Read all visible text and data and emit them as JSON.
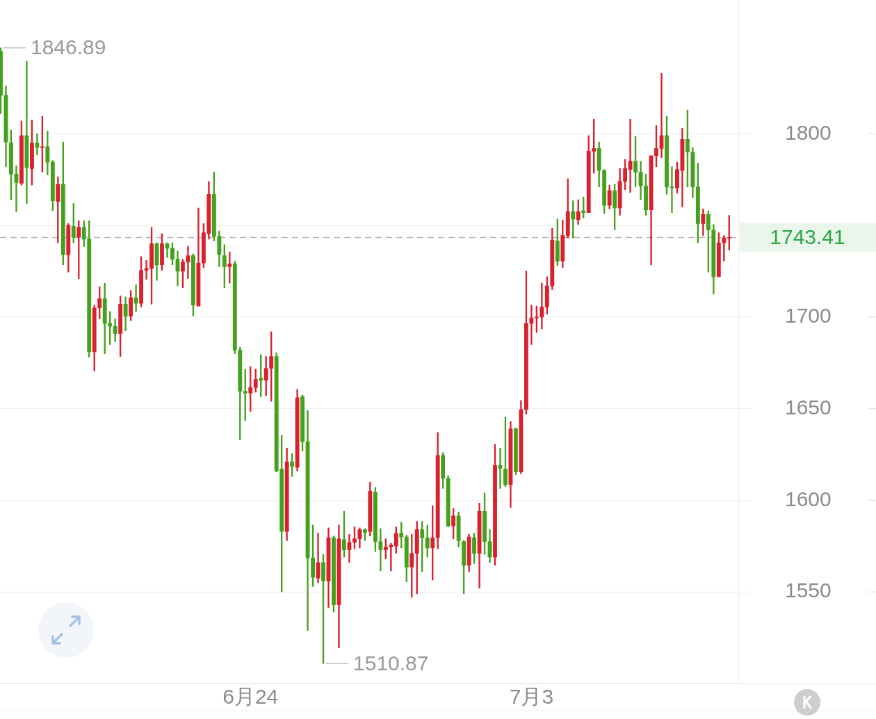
{
  "chart_data": {
    "type": "candlestick",
    "categories": [
      null,
      null,
      null,
      null,
      null,
      null,
      null,
      null,
      null,
      null,
      null,
      null,
      null,
      null,
      null,
      null,
      null,
      null,
      null,
      null,
      null,
      null,
      null,
      null,
      null,
      null,
      null,
      null,
      null,
      null,
      null,
      null,
      null,
      null,
      null,
      null,
      null,
      null,
      null,
      null,
      null,
      null,
      null,
      null,
      null,
      null,
      null,
      null,
      "6月24",
      null,
      null,
      null,
      null,
      null,
      null,
      null,
      null,
      null,
      null,
      null,
      null,
      null,
      null,
      null,
      null,
      null,
      null,
      null,
      null,
      null,
      null,
      null,
      null,
      null,
      null,
      null,
      null,
      null,
      null,
      null,
      null,
      null,
      null,
      null,
      null,
      null,
      null,
      null,
      null,
      null,
      null,
      null,
      null,
      null,
      null,
      null,
      null,
      null,
      null,
      null,
      null,
      null,
      "7月3",
      null,
      null,
      null,
      null,
      null,
      null,
      null,
      null,
      null,
      null,
      null,
      null,
      null,
      null,
      null,
      null,
      null,
      null,
      null,
      null,
      null,
      null,
      null,
      null,
      null,
      null,
      null,
      null,
      null,
      null,
      null,
      null,
      null,
      null,
      null,
      null,
      null,
      null
    ],
    "ohlc": [
      [
        1845,
        1846.89,
        1811,
        1821
      ],
      [
        1821,
        1826,
        1782,
        1795.5
      ],
      [
        1795,
        1802,
        1764,
        1778
      ],
      [
        1778,
        1782.5,
        1757.5,
        1773.5
      ],
      [
        1773,
        1807,
        1772,
        1799
      ],
      [
        1799,
        1839.5,
        1762,
        1781.5
      ],
      [
        1781,
        1807.5,
        1772,
        1795
      ],
      [
        1795,
        1800,
        1788.5,
        1792.5
      ],
      [
        1792.5,
        1809.5,
        1779,
        1793
      ],
      [
        1793,
        1801.5,
        1777.5,
        1784.5
      ],
      [
        1784.5,
        1785.5,
        1758,
        1763.5
      ],
      [
        1763,
        1776.5,
        1740.5,
        1772.5
      ],
      [
        1772.5,
        1795.5,
        1728.5,
        1734
      ],
      [
        1734,
        1751,
        1724.5,
        1750
      ],
      [
        1749.5,
        1762,
        1740.5,
        1743.5
      ],
      [
        1743.5,
        1752.5,
        1721,
        1749
      ],
      [
        1749,
        1752.5,
        1738.5,
        1742.5
      ],
      [
        1742.5,
        1752.5,
        1678,
        1681
      ],
      [
        1681,
        1706.5,
        1670.5,
        1705
      ],
      [
        1705,
        1716.5,
        1699,
        1710
      ],
      [
        1710,
        1718.5,
        1680,
        1696.5
      ],
      [
        1696.5,
        1703,
        1685,
        1695
      ],
      [
        1695,
        1699,
        1686.5,
        1691
      ],
      [
        1691,
        1711.5,
        1678.5,
        1707
      ],
      [
        1707,
        1711,
        1692.5,
        1700.5
      ],
      [
        1700.5,
        1714.5,
        1698,
        1710.5
      ],
      [
        1710.5,
        1717.5,
        1703,
        1707.5
      ],
      [
        1707.5,
        1733,
        1705.5,
        1725.5
      ],
      [
        1725.5,
        1731,
        1720.5,
        1726.5
      ],
      [
        1726.5,
        1749,
        1707,
        1740
      ],
      [
        1740,
        1740.5,
        1720,
        1728.5
      ],
      [
        1728.5,
        1745.5,
        1725.5,
        1740
      ],
      [
        1740,
        1740.5,
        1732.5,
        1737.5
      ],
      [
        1737.5,
        1740.5,
        1728.5,
        1731.5
      ],
      [
        1731.5,
        1736,
        1717,
        1725
      ],
      [
        1725,
        1731.5,
        1716,
        1730
      ],
      [
        1730,
        1738.5,
        1721,
        1733.5
      ],
      [
        1733.5,
        1734.5,
        1700.5,
        1706.5
      ],
      [
        1706,
        1759.5,
        1706,
        1729.5
      ],
      [
        1729.5,
        1751,
        1727,
        1746
      ],
      [
        1745.5,
        1774,
        1742.5,
        1767
      ],
      [
        1767,
        1779,
        1741.5,
        1744
      ],
      [
        1744,
        1747,
        1727.5,
        1734
      ],
      [
        1733.5,
        1739.5,
        1716,
        1727.5
      ],
      [
        1727.5,
        1735.5,
        1718.5,
        1729
      ],
      [
        1729,
        1730.5,
        1680,
        1682
      ],
      [
        1682,
        1683.5,
        1633,
        1659.5
      ],
      [
        1659.5,
        1671.5,
        1643.5,
        1658.5
      ],
      [
        1658.5,
        1673,
        1648.5,
        1661.5
      ],
      [
        1661.5,
        1671.5,
        1659,
        1666
      ],
      [
        1666.5,
        1679.5,
        1656.5,
        1665.5
      ],
      [
        1665.5,
        1678.5,
        1657,
        1672
      ],
      [
        1672,
        1692,
        1654,
        1678.5
      ],
      [
        1678.5,
        1680.5,
        1615.5,
        1616
      ],
      [
        1617,
        1635.5,
        1550,
        1583
      ],
      [
        1583,
        1628.5,
        1578,
        1621
      ],
      [
        1621,
        1625.5,
        1613,
        1618.5
      ],
      [
        1618,
        1660.5,
        1616,
        1656
      ],
      [
        1656.5,
        1657.5,
        1627,
        1632
      ],
      [
        1632,
        1649,
        1529,
        1568.5
      ],
      [
        1568.5,
        1586.5,
        1553,
        1558
      ],
      [
        1557.5,
        1582,
        1555,
        1566
      ],
      [
        1566,
        1570.5,
        1510.87,
        1556
      ],
      [
        1556,
        1585,
        1541.5,
        1579.5
      ],
      [
        1579.5,
        1580.5,
        1539,
        1543
      ],
      [
        1543,
        1586.5,
        1519.5,
        1579
      ],
      [
        1578.5,
        1594,
        1569,
        1573
      ],
      [
        1573,
        1581.5,
        1566,
        1577
      ],
      [
        1577,
        1585.5,
        1573.5,
        1579
      ],
      [
        1579,
        1585,
        1574,
        1584
      ],
      [
        1584,
        1584.5,
        1578,
        1582.5
      ],
      [
        1583,
        1610,
        1580.5,
        1605
      ],
      [
        1604.5,
        1607,
        1572,
        1577.5
      ],
      [
        1577.5,
        1584.5,
        1561.5,
        1573
      ],
      [
        1573,
        1579,
        1568,
        1574.5
      ],
      [
        1574.5,
        1576.5,
        1561.5,
        1575.5
      ],
      [
        1575,
        1585.5,
        1571,
        1582
      ],
      [
        1582,
        1588,
        1574,
        1580
      ],
      [
        1580,
        1581,
        1555.5,
        1563.5
      ],
      [
        1563.5,
        1581.5,
        1547,
        1571
      ],
      [
        1571,
        1588.5,
        1549,
        1584
      ],
      [
        1584,
        1588.5,
        1561,
        1579.5
      ],
      [
        1579.5,
        1586.5,
        1569,
        1574
      ],
      [
        1574,
        1597,
        1556.5,
        1579.5
      ],
      [
        1579.5,
        1637,
        1573.5,
        1624.5
      ],
      [
        1624.5,
        1626,
        1606.5,
        1612
      ],
      [
        1612,
        1613.5,
        1585.5,
        1586
      ],
      [
        1586,
        1595.5,
        1579,
        1591.5
      ],
      [
        1591.5,
        1593.5,
        1574.5,
        1578
      ],
      [
        1577.5,
        1578,
        1549,
        1564.5
      ],
      [
        1564.5,
        1581.5,
        1561,
        1580
      ],
      [
        1579.5,
        1582,
        1565.5,
        1571
      ],
      [
        1571,
        1598.5,
        1552,
        1594
      ],
      [
        1594,
        1604,
        1570.5,
        1577.5
      ],
      [
        1577.5,
        1584,
        1566,
        1569
      ],
      [
        1569,
        1630.5,
        1564.5,
        1619
      ],
      [
        1619,
        1628.5,
        1606.5,
        1617.5
      ],
      [
        1617,
        1645.5,
        1607.5,
        1608.5
      ],
      [
        1608.5,
        1643,
        1596,
        1639
      ],
      [
        1639,
        1639.5,
        1614,
        1615.5
      ],
      [
        1615.5,
        1654.5,
        1614.5,
        1649.5
      ],
      [
        1649.5,
        1725,
        1647,
        1696.5
      ],
      [
        1696.5,
        1706.5,
        1685,
        1699.5
      ],
      [
        1699.5,
        1706,
        1691.5,
        1700
      ],
      [
        1700,
        1718.5,
        1693.5,
        1705.5
      ],
      [
        1705.5,
        1722,
        1701.5,
        1717
      ],
      [
        1717,
        1748.5,
        1715,
        1742
      ],
      [
        1741.5,
        1753.5,
        1728,
        1730.5
      ],
      [
        1730.5,
        1753,
        1727,
        1744.5
      ],
      [
        1744.5,
        1775.5,
        1743,
        1757.5
      ],
      [
        1757.5,
        1763.5,
        1743,
        1753.5
      ],
      [
        1753,
        1764,
        1750.5,
        1757.5
      ],
      [
        1758,
        1765.5,
        1754,
        1757
      ],
      [
        1757,
        1799,
        1757,
        1790.5
      ],
      [
        1790.5,
        1808,
        1778.5,
        1792
      ],
      [
        1792,
        1795.5,
        1771,
        1780
      ],
      [
        1780,
        1780.5,
        1756.5,
        1761
      ],
      [
        1761,
        1772,
        1759,
        1769
      ],
      [
        1769,
        1772.5,
        1747.5,
        1759.5
      ],
      [
        1759.5,
        1781,
        1755.5,
        1774
      ],
      [
        1774,
        1786,
        1769.5,
        1781
      ],
      [
        1780.5,
        1808,
        1768,
        1785
      ],
      [
        1785,
        1798.5,
        1771,
        1779
      ],
      [
        1779,
        1785,
        1764,
        1771.5
      ],
      [
        1771.5,
        1778,
        1755.5,
        1758.5
      ],
      [
        1758.5,
        1788,
        1728.5,
        1788
      ],
      [
        1788,
        1804.5,
        1782,
        1792
      ],
      [
        1792,
        1833,
        1787,
        1799
      ],
      [
        1799,
        1809.5,
        1767,
        1771
      ],
      [
        1771,
        1782,
        1757,
        1770.5
      ],
      [
        1770.5,
        1784.5,
        1767.5,
        1780.5
      ],
      [
        1780,
        1803,
        1760,
        1797
      ],
      [
        1797,
        1813,
        1771,
        1790
      ],
      [
        1790,
        1792.5,
        1765,
        1771
      ],
      [
        1771,
        1784,
        1740.5,
        1751
      ],
      [
        1751,
        1759,
        1744.5,
        1756
      ],
      [
        1756,
        1758,
        1724.5,
        1747.5
      ],
      [
        1747.5,
        1750.5,
        1712.5,
        1722
      ],
      [
        1722,
        1746,
        1722,
        1740.5
      ],
      [
        1740.5,
        1744.5,
        1730.5,
        1743
      ],
      [
        1743,
        1755.5,
        1736.5,
        1743.41
      ]
    ],
    "colors": [
      "#43a11c",
      "#43a11c",
      "#43a11c",
      "#43a11c",
      "#d9202e",
      "#43a11c",
      "#d9202e",
      "#43a11c",
      "#d9202e",
      "#43a11c",
      "#43a11c",
      "#d9202e",
      "#43a11c",
      "#d9202e",
      "#43a11c",
      "#d9202e",
      "#43a11c",
      "#43a11c",
      "#d9202e",
      "#d9202e",
      "#43a11c",
      "#43a11c",
      "#43a11c",
      "#d9202e",
      "#43a11c",
      "#d9202e",
      "#43a11c",
      "#d9202e",
      "#d9202e",
      "#d9202e",
      "#43a11c",
      "#d9202e",
      "#43a11c",
      "#43a11c",
      "#43a11c",
      "#d9202e",
      "#d9202e",
      "#43a11c",
      "#d9202e",
      "#d9202e",
      "#d9202e",
      "#43a11c",
      "#43a11c",
      "#43a11c",
      "#d9202e",
      "#43a11c",
      "#43a11c",
      "#43a11c",
      "#d9202e",
      "#d9202e",
      "#43a11c",
      "#d9202e",
      "#d9202e",
      "#43a11c",
      "#43a11c",
      "#d9202e",
      "#43a11c",
      "#d9202e",
      "#43a11c",
      "#43a11c",
      "#43a11c",
      "#d9202e",
      "#43a11c",
      "#d9202e",
      "#43a11c",
      "#d9202e",
      "#43a11c",
      "#d9202e",
      "#d9202e",
      "#d9202e",
      "#43a11c",
      "#d9202e",
      "#43a11c",
      "#43a11c",
      "#d9202e",
      "#d9202e",
      "#d9202e",
      "#43a11c",
      "#43a11c",
      "#d9202e",
      "#d9202e",
      "#43a11c",
      "#43a11c",
      "#d9202e",
      "#d9202e",
      "#43a11c",
      "#43a11c",
      "#d9202e",
      "#43a11c",
      "#43a11c",
      "#d9202e",
      "#43a11c",
      "#d9202e",
      "#43a11c",
      "#43a11c",
      "#d9202e",
      "#43a11c",
      "#43a11c",
      "#d9202e",
      "#43a11c",
      "#d9202e",
      "#d9202e",
      "#d9202e",
      "#d9202e",
      "#d9202e",
      "#d9202e",
      "#d9202e",
      "#43a11c",
      "#d9202e",
      "#d9202e",
      "#43a11c",
      "#d9202e",
      "#43a11c",
      "#d9202e",
      "#d9202e",
      "#43a11c",
      "#43a11c",
      "#d9202e",
      "#43a11c",
      "#d9202e",
      "#d9202e",
      "#d9202e",
      "#43a11c",
      "#43a11c",
      "#43a11c",
      "#d9202e",
      "#d9202e",
      "#d9202e",
      "#43a11c",
      "#43a11c",
      "#d9202e",
      "#d9202e",
      "#43a11c",
      "#43a11c",
      "#43a11c",
      "#d9202e",
      "#43a11c",
      "#43a11c",
      "#d9202e",
      "#d9202e",
      "#d9202e"
    ],
    "ylim": [
      1500,
      1873
    ],
    "yticks": [
      1550,
      1600,
      1650,
      1700,
      {
        "value": 1750,
        "label": null
      },
      1800
    ],
    "grid": "y",
    "annotations": [
      "1846.89",
      "1510.87"
    ],
    "ref_lines": [
      {
        "axis": "y",
        "value": 1743.41,
        "label": "1743.41",
        "color": "#b4b4b4",
        "line_style": "dashed"
      }
    ]
  }
}
